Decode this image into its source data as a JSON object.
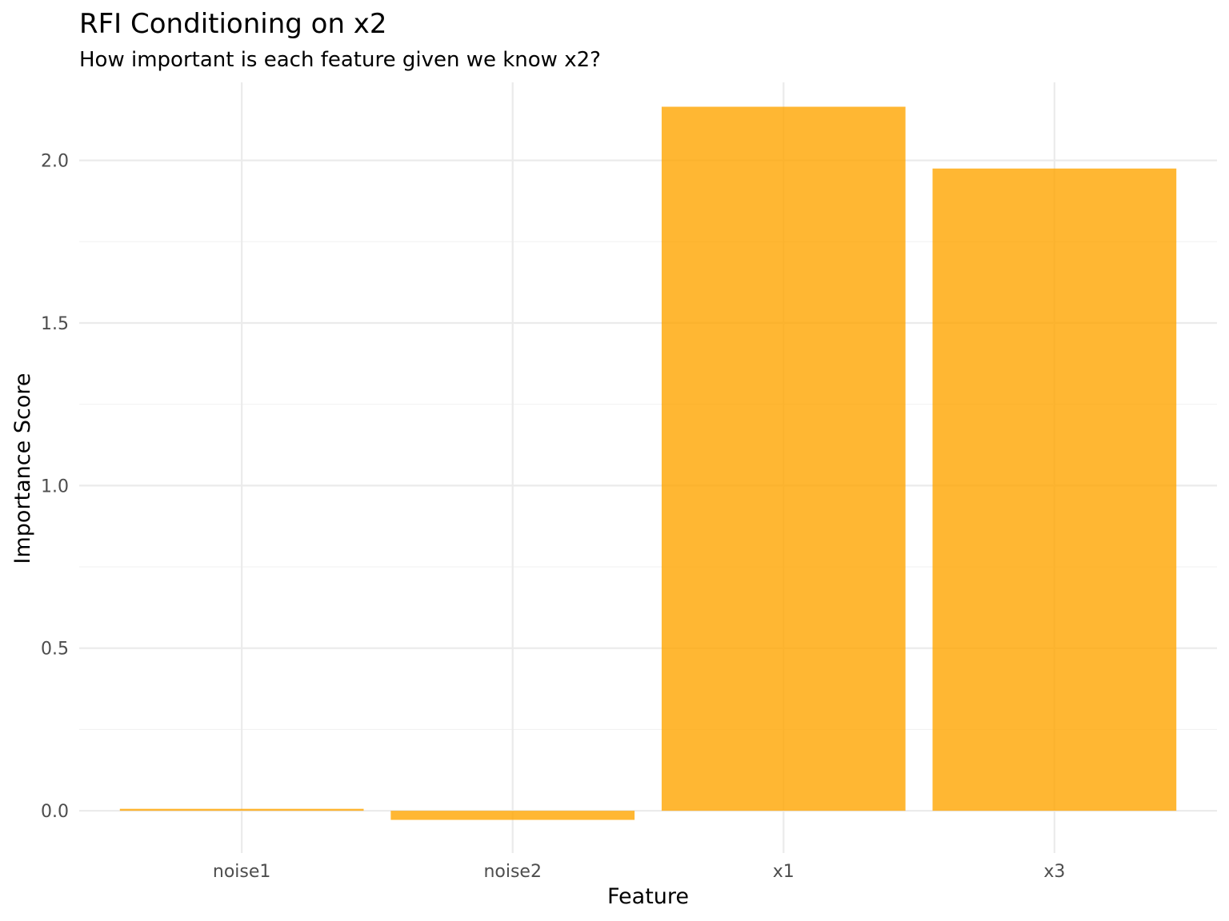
{
  "chart_data": {
    "type": "bar",
    "title": "RFI Conditioning on x2",
    "subtitle": "How important is each feature given we know x2?",
    "xlabel": "Feature",
    "ylabel": "Importance Score",
    "categories": [
      "noise1",
      "noise2",
      "x1",
      "x3"
    ],
    "values": [
      0.006,
      -0.028,
      2.165,
      1.975
    ],
    "ylim": [
      -0.13,
      2.24
    ],
    "yticks": [
      0.0,
      0.5,
      1.0,
      1.5,
      2.0
    ],
    "ytick_labels": [
      "0.0",
      "0.5",
      "1.0",
      "1.5",
      "2.0"
    ],
    "bar_color": "#FFA500",
    "bar_opacity": 0.8,
    "grid": true,
    "legend": false
  }
}
